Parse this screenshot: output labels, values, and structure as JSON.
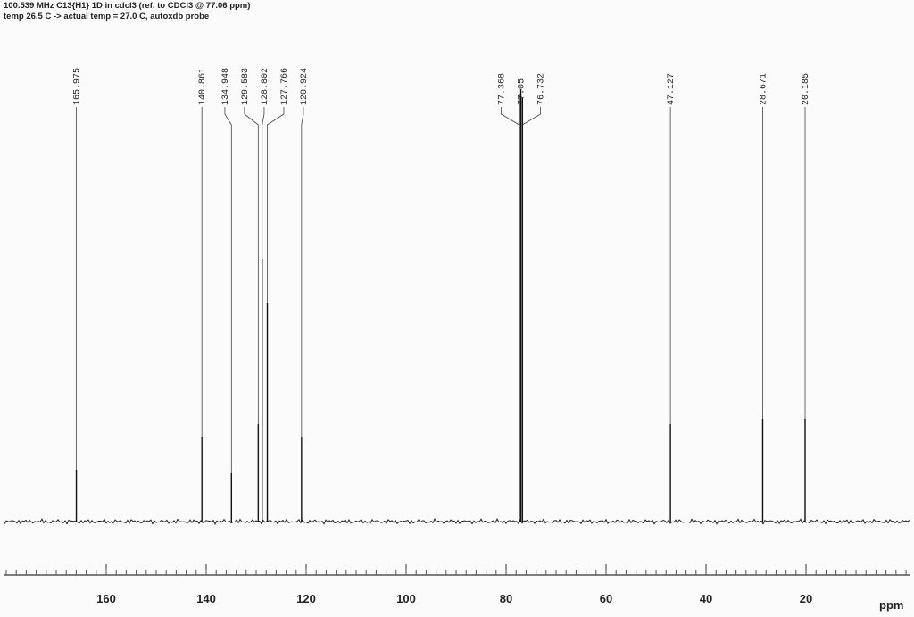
{
  "chart_data": {
    "type": "spectrum",
    "title": "100.539 MHz C13{H1} 1D in cdcl3 (ref. to CDCl3 @ 77.06 ppm)",
    "subtitle": "temp 26.5 C -> actual temp = 27.0 C, autoxdb probe",
    "x_label": "ppm",
    "x": [
      165.975,
      140.861,
      134.948,
      129.583,
      128.802,
      127.766,
      120.924,
      77.368,
      77.05,
      76.732,
      47.127,
      28.671,
      20.185
    ],
    "values": [
      11.6,
      19,
      11,
      22,
      59,
      49,
      19,
      96,
      97,
      95,
      22,
      23,
      23
    ],
    "color": "#111111",
    "xlim": [
      181.25,
      -1.6
    ],
    "ylim": [
      0,
      100
    ],
    "xticks": [
      160,
      140,
      120,
      100,
      80,
      60,
      40,
      20
    ],
    "reversed_x": true
  }
}
